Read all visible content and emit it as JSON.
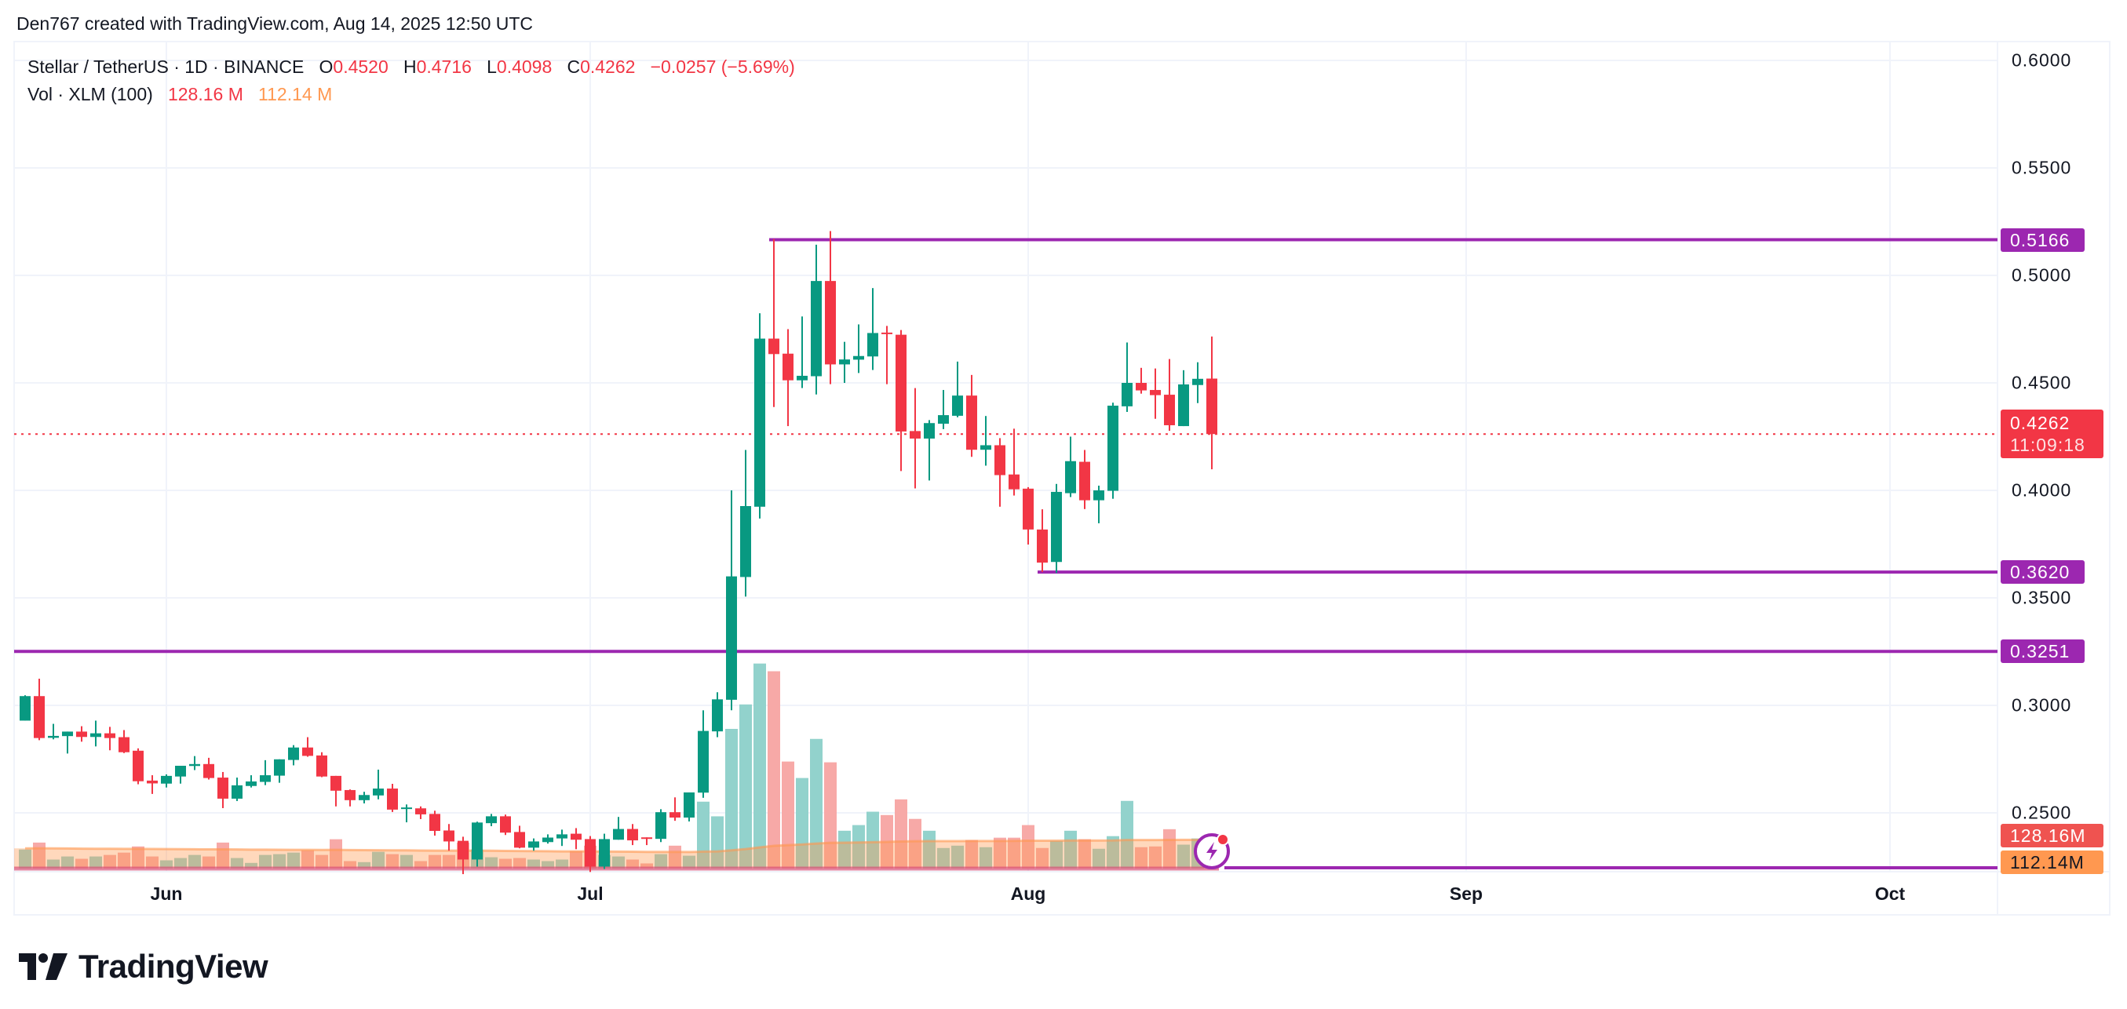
{
  "header": {
    "caption": "Den767 created with TradingView.com, Aug 14, 2025 12:50 UTC"
  },
  "legend": {
    "symbol": "Stellar / TetherUS · 1D · BINANCE",
    "o_label": "O",
    "o_value": "0.4520",
    "h_label": "H",
    "h_value": "0.4716",
    "l_label": "L",
    "l_value": "0.4098",
    "c_label": "C",
    "c_value": "0.4262",
    "change": "−0.0257 (−5.69%)",
    "vol_title": "Vol · XLM (100)",
    "vol_value": "128.16 M",
    "vol_ma_value": "112.14 M"
  },
  "price_axis": {
    "ticks": [
      "0.6000",
      "0.5500",
      "0.5000",
      "0.4500",
      "0.4000",
      "0.3500",
      "0.3000",
      "0.2500"
    ],
    "tick_values": [
      0.6,
      0.55,
      0.5,
      0.45,
      0.4,
      0.35,
      0.3,
      0.25
    ],
    "badges": {
      "level_high": "0.5166",
      "last_price": "0.4262",
      "countdown": "11:09:18",
      "level_mid": "0.3620",
      "level_low": "0.3251",
      "volume": "128.16M",
      "volume_ma": "112.14M"
    }
  },
  "time_axis": {
    "labels": [
      "Jun",
      "Jul",
      "Aug",
      "Sep",
      "Oct"
    ],
    "label_day_offsets": [
      0,
      30,
      61,
      92,
      122
    ]
  },
  "branding": {
    "logo_text": "TradingView"
  },
  "colors": {
    "up": "#089981",
    "down": "#F23645",
    "level": "#9C27B0",
    "vol_up": "#92D2CC",
    "vol_down": "#F7A9A7",
    "ma": "#FF9850",
    "grid": "#F0F3FA"
  },
  "chart_data": {
    "type": "candlestick",
    "title": "Stellar / TetherUS · 1D · BINANCE",
    "start_date": "2025-05-22",
    "ylim": [
      0.25,
      0.6
    ],
    "grid": true,
    "horizontal_levels": [
      {
        "price": 0.5166,
        "from_date": "2025-07-14"
      },
      {
        "price": 0.362,
        "from_date": "2025-08-02"
      },
      {
        "price": 0.3251,
        "from_date": "start"
      }
    ],
    "last_price": 0.4262,
    "candles_ohlcv": [
      [
        "05-22",
        0.2929,
        0.3047,
        0.2929,
        0.3043,
        74
      ],
      [
        "05-23",
        0.3043,
        0.3124,
        0.2838,
        0.2848,
        101
      ],
      [
        "05-24",
        0.2849,
        0.2914,
        0.2842,
        0.2858,
        35
      ],
      [
        "05-25",
        0.2857,
        0.2878,
        0.2776,
        0.2878,
        47
      ],
      [
        "05-26",
        0.2878,
        0.2903,
        0.2831,
        0.2853,
        38
      ],
      [
        "05-27",
        0.2853,
        0.2929,
        0.2809,
        0.287,
        47
      ],
      [
        "05-28",
        0.287,
        0.29,
        0.2791,
        0.2848,
        53
      ],
      [
        "05-29",
        0.2852,
        0.2885,
        0.2778,
        0.2782,
        62
      ],
      [
        "05-30",
        0.2789,
        0.28,
        0.2633,
        0.2647,
        86
      ],
      [
        "05-31",
        0.265,
        0.2675,
        0.2588,
        0.2637,
        47
      ],
      [
        "06-01",
        0.2636,
        0.2679,
        0.2618,
        0.2672,
        32
      ],
      [
        "06-02",
        0.2669,
        0.2719,
        0.2636,
        0.2719,
        41
      ],
      [
        "06-03",
        0.2718,
        0.2764,
        0.2699,
        0.2727,
        53
      ],
      [
        "06-04",
        0.2727,
        0.2756,
        0.2655,
        0.2662,
        47
      ],
      [
        "06-05",
        0.2664,
        0.269,
        0.2522,
        0.2566,
        101
      ],
      [
        "06-06",
        0.2566,
        0.2664,
        0.2555,
        0.2628,
        41
      ],
      [
        "06-07",
        0.2625,
        0.2675,
        0.2618,
        0.2646,
        22
      ],
      [
        "06-08",
        0.2644,
        0.2745,
        0.2629,
        0.2675,
        53
      ],
      [
        "06-09",
        0.2673,
        0.2749,
        0.264,
        0.2749,
        56
      ],
      [
        "06-10",
        0.2746,
        0.2815,
        0.2721,
        0.2804,
        62
      ],
      [
        "06-11",
        0.2804,
        0.2852,
        0.2761,
        0.2765,
        71
      ],
      [
        "06-12",
        0.2767,
        0.2782,
        0.2666,
        0.2669,
        53
      ],
      [
        "06-13",
        0.2672,
        0.2672,
        0.253,
        0.2603,
        114
      ],
      [
        "06-14",
        0.2606,
        0.2609,
        0.253,
        0.2559,
        29
      ],
      [
        "06-15",
        0.2559,
        0.2598,
        0.2544,
        0.2583,
        25
      ],
      [
        "06-16",
        0.2581,
        0.2701,
        0.2563,
        0.2613,
        65
      ],
      [
        "06-17",
        0.2613,
        0.2635,
        0.2504,
        0.2515,
        56
      ],
      [
        "06-18",
        0.252,
        0.2539,
        0.2456,
        0.2525,
        53
      ],
      [
        "06-19",
        0.2521,
        0.253,
        0.2471,
        0.2493,
        29
      ],
      [
        "06-20",
        0.2495,
        0.251,
        0.2394,
        0.2416,
        53
      ],
      [
        "06-21",
        0.2418,
        0.2448,
        0.2324,
        0.2367,
        53
      ],
      [
        "06-22",
        0.237,
        0.2389,
        0.2215,
        0.2283,
        101
      ],
      [
        "06-23",
        0.2283,
        0.2459,
        0.225,
        0.2455,
        74
      ],
      [
        "06-24",
        0.2452,
        0.2495,
        0.2438,
        0.2484,
        44
      ],
      [
        "06-25",
        0.2484,
        0.2492,
        0.2397,
        0.2408,
        38
      ],
      [
        "06-26",
        0.2411,
        0.244,
        0.2335,
        0.2338,
        41
      ],
      [
        "06-27",
        0.2338,
        0.2381,
        0.2324,
        0.2367,
        35
      ],
      [
        "06-28",
        0.2364,
        0.24,
        0.2357,
        0.2385,
        29
      ],
      [
        "06-29",
        0.2381,
        0.2422,
        0.2346,
        0.24,
        35
      ],
      [
        "06-30",
        0.2403,
        0.2429,
        0.2331,
        0.2375,
        68
      ],
      [
        "07-01",
        0.2378,
        0.2392,
        0.2225,
        0.225,
        89
      ],
      [
        "07-02",
        0.225,
        0.2403,
        0.2239,
        0.2378,
        53
      ],
      [
        "07-03",
        0.2375,
        0.2481,
        0.2375,
        0.2425,
        47
      ],
      [
        "07-04",
        0.2425,
        0.2448,
        0.235,
        0.2372,
        35
      ],
      [
        "07-05",
        0.2386,
        0.2386,
        0.235,
        0.2381,
        20
      ],
      [
        "07-06",
        0.2379,
        0.2517,
        0.2364,
        0.2503,
        56
      ],
      [
        "07-07",
        0.2503,
        0.2572,
        0.2463,
        0.2478,
        89
      ],
      [
        "07-08",
        0.2478,
        0.2595,
        0.246,
        0.2595,
        50
      ],
      [
        "07-09",
        0.2594,
        0.2977,
        0.257,
        0.2881,
        260
      ],
      [
        "07-10",
        0.2879,
        0.3061,
        0.2852,
        0.3028,
        203
      ],
      [
        "07-11",
        0.3026,
        0.4,
        0.2977,
        0.36,
        543
      ],
      [
        "07-12",
        0.3597,
        0.4188,
        0.3506,
        0.3927,
        638
      ],
      [
        "07-13",
        0.3924,
        0.4824,
        0.3869,
        0.4706,
        797
      ],
      [
        "07-14",
        0.4706,
        0.5169,
        0.4388,
        0.4634,
        767
      ],
      [
        "07-15",
        0.4636,
        0.475,
        0.4299,
        0.4512,
        416
      ],
      [
        "07-16",
        0.4512,
        0.4809,
        0.4476,
        0.4533,
        352
      ],
      [
        "07-17",
        0.4531,
        0.5143,
        0.4446,
        0.4974,
        504
      ],
      [
        "07-18",
        0.4974,
        0.5206,
        0.4494,
        0.4586,
        413
      ],
      [
        "07-19",
        0.4586,
        0.4691,
        0.45,
        0.4609,
        147
      ],
      [
        "07-20",
        0.4608,
        0.4772,
        0.4546,
        0.4625,
        169
      ],
      [
        "07-21",
        0.4623,
        0.4941,
        0.456,
        0.4732,
        221
      ],
      [
        "07-22",
        0.4734,
        0.4765,
        0.4494,
        0.4729,
        208
      ],
      [
        "07-23",
        0.4724,
        0.4746,
        0.409,
        0.4274,
        269
      ],
      [
        "07-24",
        0.4276,
        0.4476,
        0.4009,
        0.4241,
        193
      ],
      [
        "07-25",
        0.4241,
        0.4327,
        0.4046,
        0.4313,
        147
      ],
      [
        "07-26",
        0.431,
        0.4467,
        0.4285,
        0.435,
        80
      ],
      [
        "07-27",
        0.4347,
        0.4599,
        0.434,
        0.4441,
        89
      ],
      [
        "07-28",
        0.4441,
        0.4537,
        0.4156,
        0.4189,
        111
      ],
      [
        "07-29",
        0.4189,
        0.4346,
        0.4115,
        0.421,
        83
      ],
      [
        "07-30",
        0.421,
        0.4243,
        0.3924,
        0.4071,
        120
      ],
      [
        "07-31",
        0.4074,
        0.4287,
        0.3976,
        0.4005,
        120
      ],
      [
        "08-01",
        0.4008,
        0.4015,
        0.3748,
        0.3818,
        169
      ],
      [
        "08-02",
        0.3818,
        0.3912,
        0.362,
        0.3664,
        80
      ],
      [
        "08-03",
        0.3667,
        0.403,
        0.3616,
        0.3993,
        108
      ],
      [
        "08-04",
        0.3987,
        0.425,
        0.3969,
        0.4136,
        147
      ],
      [
        "08-05",
        0.4133,
        0.4188,
        0.3913,
        0.3954,
        114
      ],
      [
        "08-06",
        0.3954,
        0.4022,
        0.3847,
        0.4,
        77
      ],
      [
        "08-07",
        0.3998,
        0.4408,
        0.3961,
        0.4394,
        126
      ],
      [
        "08-08",
        0.4391,
        0.4688,
        0.4365,
        0.45,
        263
      ],
      [
        "08-09",
        0.45,
        0.457,
        0.445,
        0.4465,
        83
      ],
      [
        "08-10",
        0.4467,
        0.4567,
        0.4333,
        0.4443,
        86
      ],
      [
        "08-11",
        0.4445,
        0.4611,
        0.4277,
        0.4303,
        153
      ],
      [
        "08-12",
        0.4299,
        0.4559,
        0.4299,
        0.4493,
        93
      ],
      [
        "08-13",
        0.449,
        0.4596,
        0.4406,
        0.4519,
        117
      ],
      [
        "08-14",
        0.452,
        0.4716,
        0.4098,
        0.4262,
        128.16
      ]
    ],
    "volume_unit": "M",
    "volume_ma_last": 112.14
  }
}
